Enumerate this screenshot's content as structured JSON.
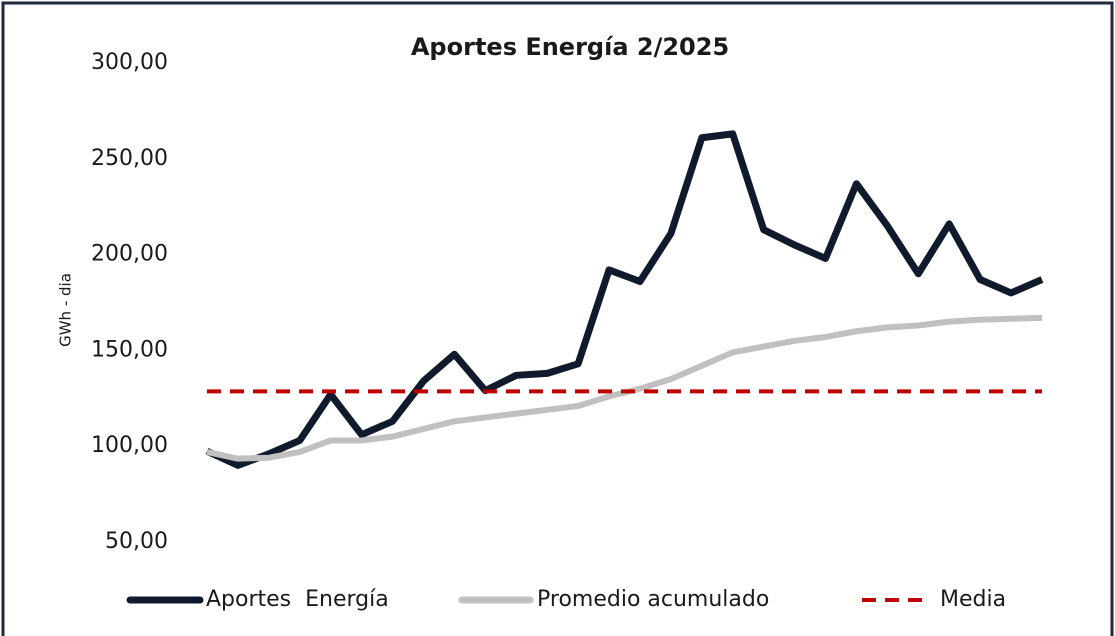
{
  "chart_data": {
    "type": "line",
    "title": "Aportes Energía 2/2025",
    "y_label": "GWh - dia",
    "categories": [
      null,
      null,
      null,
      null,
      null,
      null,
      null,
      null,
      null,
      null,
      null,
      null,
      null,
      null,
      null,
      null,
      null,
      null,
      null,
      null,
      null,
      null,
      null,
      null,
      null,
      null,
      null,
      null
    ],
    "series": [
      {
        "name": "Aportes  Energía",
        "color": "#0f1b2d",
        "style": "solid",
        "values": [
          97.4,
          90,
          96,
          103,
          127,
          106,
          113,
          134,
          148,
          129,
          137,
          138,
          143,
          192,
          186,
          211,
          261,
          263,
          213,
          205,
          198,
          237,
          215,
          190,
          216,
          187,
          180,
          187
        ]
      },
      {
        "name": "Promedio acumulado",
        "color": "#c0c0c0",
        "style": "solid",
        "values": [
          97,
          93.5,
          94,
          97,
          103,
          103,
          105,
          109,
          113,
          115,
          117,
          119,
          121,
          126,
          130,
          135,
          142,
          149,
          152,
          155,
          157,
          160,
          162,
          163,
          165,
          166,
          166.5,
          167
        ]
      },
      {
        "name": "Media",
        "color": "#c00000",
        "style": "dashed",
        "values": [
          128.6,
          128.6,
          128.6,
          128.6,
          128.6,
          128.6,
          128.6,
          128.6,
          128.6,
          128.6,
          128.6,
          128.6,
          128.6,
          128.6,
          128.6,
          128.6,
          128.6,
          128.6,
          128.6,
          128.6,
          128.6,
          128.6,
          128.6,
          128.6,
          128.6,
          128.6,
          128.6,
          128.6
        ]
      }
    ],
    "ylim": [
      50,
      300
    ],
    "yticks": [
      {
        "value": 50,
        "label": "50,00"
      },
      {
        "value": 100,
        "label": "100,00"
      },
      {
        "value": 150,
        "label": "150,00"
      },
      {
        "value": 200,
        "label": "200,00"
      },
      {
        "value": 250,
        "label": "250,00"
      },
      {
        "value": 300,
        "label": "300,00"
      }
    ],
    "grid": false,
    "legend": "bottom"
  }
}
